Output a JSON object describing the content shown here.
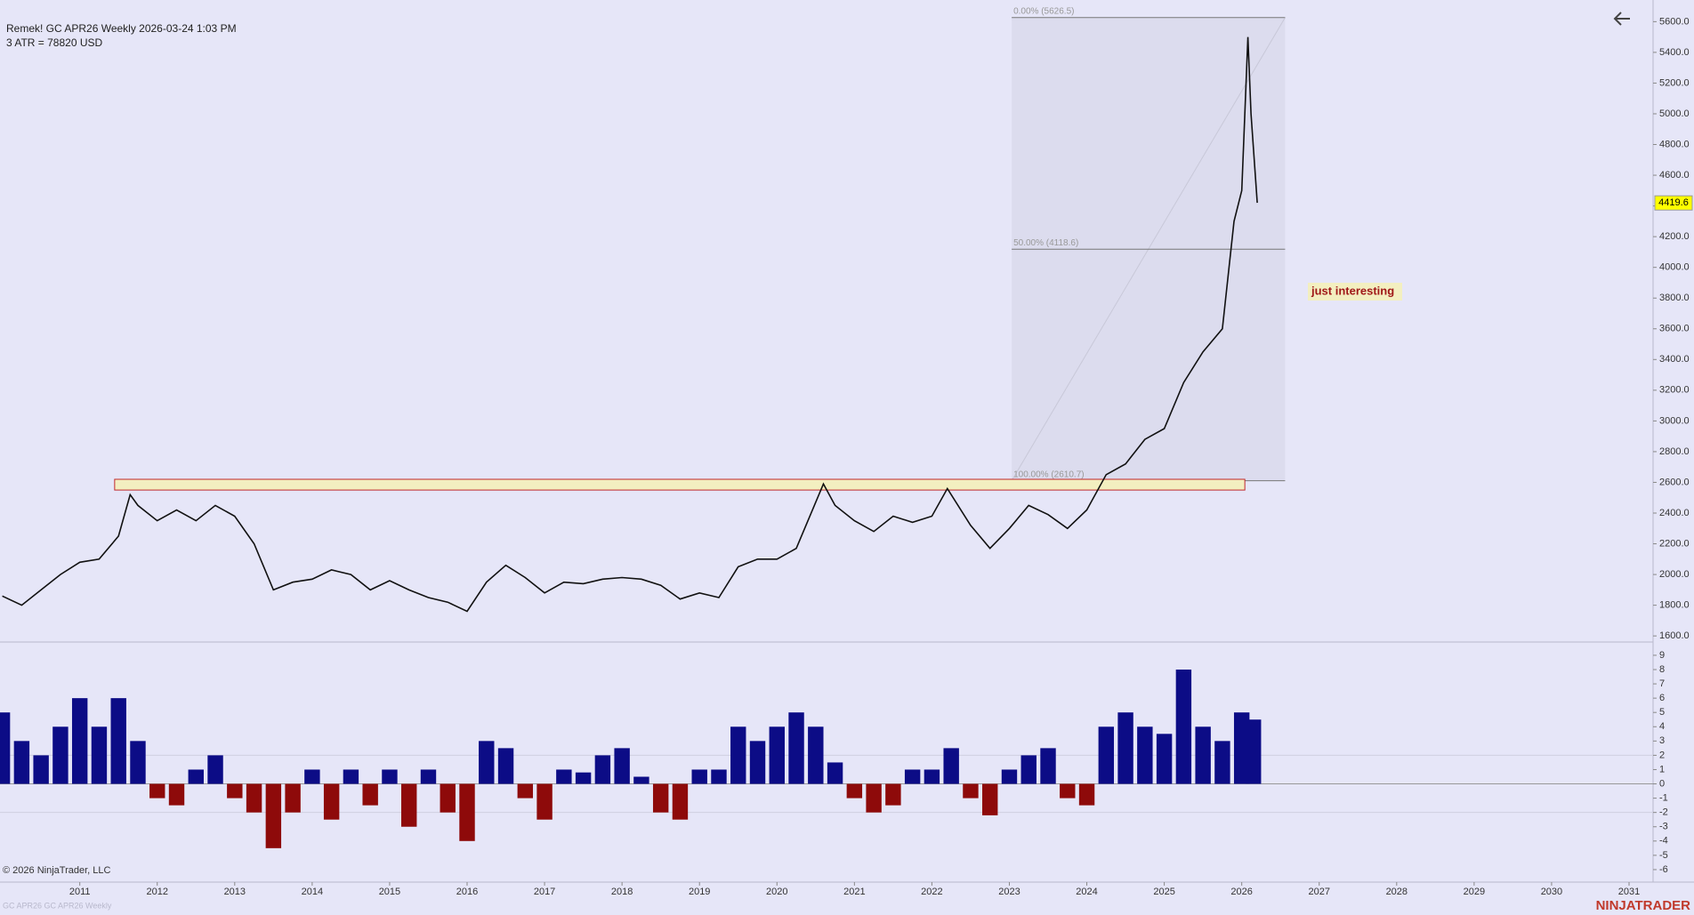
{
  "chart_data": [
    {
      "type": "line",
      "title": "Remek!  GC APR26  Weekly  2026-03-24 1:03 PM",
      "subtitle": "3 ATR = 78820 USD",
      "color": "#111111",
      "x": [
        2010.0,
        2010.25,
        2010.5,
        2010.75,
        2011.0,
        2011.25,
        2011.5,
        2011.65,
        2011.75,
        2012.0,
        2012.25,
        2012.5,
        2012.75,
        2013.0,
        2013.25,
        2013.5,
        2013.75,
        2014.0,
        2014.25,
        2014.5,
        2014.75,
        2015.0,
        2015.25,
        2015.5,
        2015.75,
        2016.0,
        2016.25,
        2016.5,
        2016.75,
        2017.0,
        2017.25,
        2017.5,
        2017.75,
        2018.0,
        2018.25,
        2018.5,
        2018.75,
        2019.0,
        2019.25,
        2019.5,
        2019.75,
        2020.0,
        2020.25,
        2020.6,
        2020.75,
        2021.0,
        2021.25,
        2021.5,
        2021.75,
        2022.0,
        2022.2,
        2022.5,
        2022.75,
        2023.0,
        2023.25,
        2023.5,
        2023.75,
        2024.0,
        2024.25,
        2024.5,
        2024.75,
        2025.0,
        2025.25,
        2025.5,
        2025.75,
        2025.9,
        2026.0,
        2026.08,
        2026.12,
        2026.2
      ],
      "values": [
        1860,
        1800,
        1900,
        2000,
        2080,
        2100,
        2250,
        2520,
        2450,
        2350,
        2420,
        2350,
        2450,
        2380,
        2200,
        1900,
        1950,
        1970,
        2030,
        2000,
        1900,
        1960,
        1900,
        1850,
        1820,
        1760,
        1950,
        2060,
        1980,
        1880,
        1950,
        1940,
        1970,
        1980,
        1970,
        1930,
        1840,
        1880,
        1850,
        2050,
        2100,
        2100,
        2170,
        2590,
        2450,
        2350,
        2280,
        2380,
        2340,
        2380,
        2560,
        2320,
        2170,
        2300,
        2450,
        2390,
        2300,
        2420,
        2650,
        2720,
        2880,
        2950,
        3250,
        3450,
        3600,
        4300,
        4500,
        5500,
        5000,
        4420
      ],
      "last_price": 4419.6,
      "xlim": [
        2009.97,
        2031.31
      ],
      "xticks": [
        2011,
        2012,
        2013,
        2014,
        2015,
        2016,
        2017,
        2018,
        2019,
        2020,
        2021,
        2022,
        2023,
        2024,
        2025,
        2026,
        2027,
        2028,
        2029,
        2030,
        2031
      ],
      "ylim": [
        1572,
        5741
      ],
      "yticks": [
        {
          "value": 1600,
          "label": "1600.0"
        },
        {
          "value": 1800,
          "label": "1800.0"
        },
        {
          "value": 2000,
          "label": "2000.0"
        },
        {
          "value": 2200,
          "label": "2200.0"
        },
        {
          "value": 2400,
          "label": "2400.0"
        },
        {
          "value": 2600,
          "label": "2600.0"
        },
        {
          "value": 2800,
          "label": "2800.0"
        },
        {
          "value": 3000,
          "label": "3000.0"
        },
        {
          "value": 3200,
          "label": "3200.0"
        },
        {
          "value": 3400,
          "label": "3400.0"
        },
        {
          "value": 3600,
          "label": "3600.0"
        },
        {
          "value": 3800,
          "label": "3800.0"
        },
        {
          "value": 4000,
          "label": "4000.0"
        },
        {
          "value": 4200,
          "label": "4200.0"
        },
        {
          "value": 4400,
          "label": "4400.0"
        },
        {
          "value": 4600,
          "label": "4600.0"
        },
        {
          "value": 4800,
          "label": "4800.0"
        },
        {
          "value": 5000,
          "label": "5000.0"
        },
        {
          "value": 5200,
          "label": "5200.0"
        },
        {
          "value": 5400,
          "label": "5400.0"
        },
        {
          "value": 5600,
          "label": "5600.0"
        }
      ],
      "fib": {
        "xrange": [
          2023.03,
          2026.56
        ],
        "levels": [
          {
            "value": 5626.5,
            "label": "0.00% (5626.5)"
          },
          {
            "value": 4118.6,
            "label": "50.00% (4118.6)"
          },
          {
            "value": 2610.7,
            "label": "100.00% (2610.7)"
          }
        ]
      },
      "zone": {
        "label": "just interesting",
        "range": [
          2550,
          2620
        ],
        "xrange": [
          2011.45,
          2026.04
        ]
      }
    },
    {
      "type": "bar",
      "colors": {
        "positive": "#0c0c86",
        "negative": "#8e0a0a"
      },
      "x": [
        2010.0,
        2010.25,
        2010.5,
        2010.75,
        2011.0,
        2011.25,
        2011.5,
        2011.75,
        2012.0,
        2012.25,
        2012.5,
        2012.75,
        2013.0,
        2013.25,
        2013.5,
        2013.75,
        2014.0,
        2014.25,
        2014.5,
        2014.75,
        2015.0,
        2015.25,
        2015.5,
        2015.75,
        2016.0,
        2016.25,
        2016.5,
        2016.75,
        2017.0,
        2017.25,
        2017.5,
        2017.75,
        2018.0,
        2018.25,
        2018.5,
        2018.75,
        2019.0,
        2019.25,
        2019.5,
        2019.75,
        2020.0,
        2020.25,
        2020.5,
        2020.75,
        2021.0,
        2021.25,
        2021.5,
        2021.75,
        2022.0,
        2022.25,
        2022.5,
        2022.75,
        2023.0,
        2023.25,
        2023.5,
        2023.75,
        2024.0,
        2024.25,
        2024.5,
        2024.75,
        2025.0,
        2025.25,
        2025.5,
        2025.75,
        2026.0,
        2026.15
      ],
      "values": [
        5,
        3,
        2,
        4,
        6,
        4,
        6,
        3,
        -1,
        -1.5,
        1,
        2,
        -1,
        -2,
        -4.5,
        -2,
        1,
        -2.5,
        1,
        -1.5,
        1,
        -3,
        1,
        -2,
        -4,
        3,
        2.5,
        -1,
        -2.5,
        1,
        0.8,
        2,
        2.5,
        0.5,
        -2,
        -2.5,
        1,
        1,
        4,
        3,
        4,
        5,
        4,
        1.5,
        -1,
        -2,
        -1.5,
        1,
        1,
        2.5,
        -1,
        -2.2,
        1,
        2,
        2.5,
        -1,
        -1.5,
        4,
        5,
        4,
        3.5,
        8,
        4,
        3,
        5,
        4.5
      ],
      "xlim": [
        2009.97,
        2031.31
      ],
      "ylim": [
        -6.75,
        9.68
      ],
      "yticks": [
        -6,
        -5,
        -4,
        -3,
        -2,
        -1,
        0,
        1,
        2,
        3,
        4,
        5,
        6,
        7,
        8,
        9
      ]
    }
  ],
  "footer": {
    "copyright": "© 2026 NinjaTrader, LLC",
    "watermark": "GC APR26 GC APR26 Weekly",
    "brand": "NINJATRADER"
  }
}
